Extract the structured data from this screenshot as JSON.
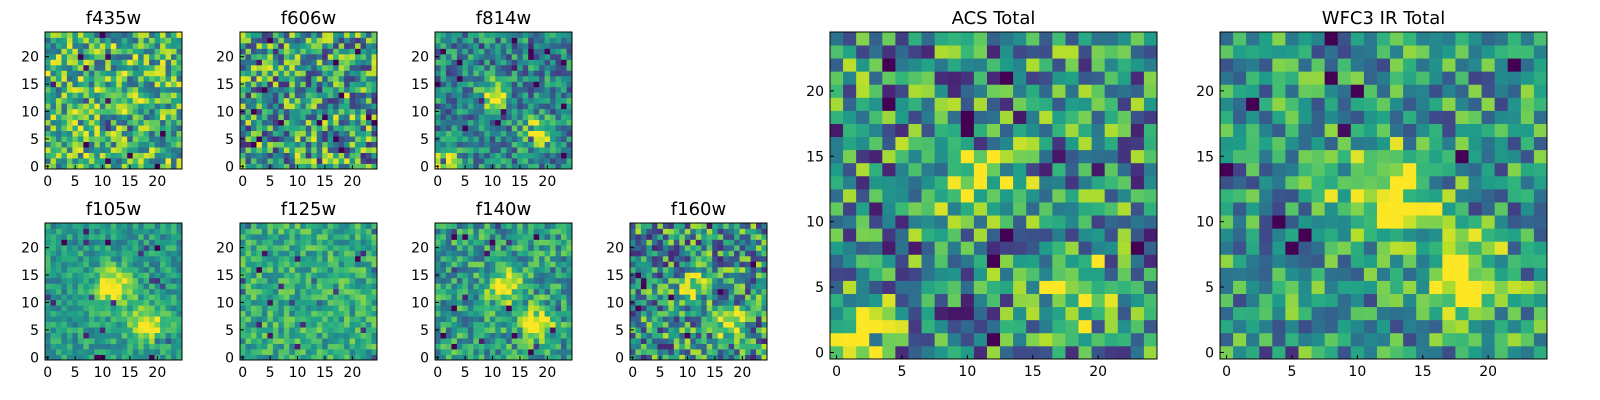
{
  "figure": {
    "panels": [
      {
        "title": "f435w",
        "xticks": [
          "0",
          "5",
          "10",
          "15",
          "20"
        ],
        "yticks": [
          "0",
          "5",
          "10",
          "15",
          "20"
        ]
      },
      {
        "title": "f606w",
        "xticks": [
          "0",
          "5",
          "10",
          "15",
          "20"
        ],
        "yticks": [
          "0",
          "5",
          "10",
          "15",
          "20"
        ]
      },
      {
        "title": "f814w",
        "xticks": [
          "0",
          "5",
          "10",
          "15",
          "20"
        ],
        "yticks": [
          "0",
          "5",
          "10",
          "15",
          "20"
        ]
      },
      {
        "title": "f105w",
        "xticks": [
          "0",
          "5",
          "10",
          "15",
          "20"
        ],
        "yticks": [
          "0",
          "5",
          "10",
          "15",
          "20"
        ]
      },
      {
        "title": "f125w",
        "xticks": [
          "0",
          "5",
          "10",
          "15",
          "20"
        ],
        "yticks": [
          "0",
          "5",
          "10",
          "15",
          "20"
        ]
      },
      {
        "title": "f140w",
        "xticks": [
          "0",
          "5",
          "10",
          "15",
          "20"
        ],
        "yticks": [
          "0",
          "5",
          "10",
          "15",
          "20"
        ]
      },
      {
        "title": "f160w",
        "xticks": [
          "0",
          "5",
          "10",
          "15",
          "20"
        ],
        "yticks": [
          "0",
          "5",
          "10",
          "15",
          "20"
        ]
      },
      {
        "title": "ACS Total",
        "xticks": [
          "0",
          "5",
          "10",
          "15",
          "20"
        ],
        "yticks": [
          "0",
          "5",
          "10",
          "15",
          "20"
        ]
      },
      {
        "title": "WFC3 IR Total",
        "xticks": [
          "0",
          "5",
          "10",
          "15",
          "20"
        ],
        "yticks": [
          "0",
          "5",
          "10",
          "15",
          "20"
        ]
      }
    ]
  },
  "chart_data": [
    {
      "type": "heatmap",
      "title": "f435w",
      "xlim": [
        -0.5,
        24.5
      ],
      "ylim": [
        -0.5,
        24.5
      ],
      "grid_size": 25,
      "colormap": "viridis",
      "grid": false,
      "appearance": "noisy, mostly uniform yellow-green with scattered dark pixels"
    },
    {
      "type": "heatmap",
      "title": "f606w",
      "xlim": [
        -0.5,
        24.5
      ],
      "ylim": [
        -0.5,
        24.5
      ],
      "grid_size": 25,
      "colormap": "viridis",
      "grid": false,
      "appearance": "noisy green with brighter patch along the left edge"
    },
    {
      "type": "heatmap",
      "title": "f814w",
      "xlim": [
        -0.5,
        24.5
      ],
      "ylim": [
        -0.5,
        24.5
      ],
      "grid_size": 25,
      "colormap": "viridis",
      "grid": false,
      "peaks": [
        {
          "x": 10,
          "y": 13
        },
        {
          "x": 18,
          "y": 6
        },
        {
          "x": 1,
          "y": 1
        }
      ]
    },
    {
      "type": "heatmap",
      "title": "f105w",
      "xlim": [
        -0.5,
        24.5
      ],
      "ylim": [
        -0.5,
        24.5
      ],
      "grid_size": 25,
      "colormap": "viridis",
      "grid": false,
      "peaks": [
        {
          "x": 12,
          "y": 13
        },
        {
          "x": 18,
          "y": 6
        }
      ]
    },
    {
      "type": "heatmap",
      "title": "f125w",
      "xlim": [
        -0.5,
        24.5
      ],
      "ylim": [
        -0.5,
        24.5
      ],
      "grid_size": 25,
      "colormap": "viridis",
      "grid": false,
      "appearance": "blotchy yellow-green with several dark pixels"
    },
    {
      "type": "heatmap",
      "title": "f140w",
      "xlim": [
        -0.5,
        24.5
      ],
      "ylim": [
        -0.5,
        24.5
      ],
      "grid_size": 25,
      "colormap": "viridis",
      "grid": false,
      "peaks": [
        {
          "x": 12,
          "y": 13
        },
        {
          "x": 18,
          "y": 6
        }
      ]
    },
    {
      "type": "heatmap",
      "title": "f160w",
      "xlim": [
        -0.5,
        24.5
      ],
      "ylim": [
        -0.5,
        24.5
      ],
      "grid_size": 25,
      "colormap": "viridis",
      "grid": false,
      "peaks": [
        {
          "x": 11,
          "y": 13
        },
        {
          "x": 17,
          "y": 6
        }
      ]
    },
    {
      "type": "heatmap",
      "title": "ACS Total",
      "xlim": [
        -0.5,
        24.5
      ],
      "ylim": [
        -0.5,
        24.5
      ],
      "grid_size": 25,
      "colormap": "viridis",
      "grid": false,
      "peaks": [
        {
          "x": 11,
          "y": 13
        },
        {
          "x": 18,
          "y": 5
        },
        {
          "x": 1,
          "y": 2
        }
      ]
    },
    {
      "type": "heatmap",
      "title": "WFC3 IR Total",
      "xlim": [
        -0.5,
        24.5
      ],
      "ylim": [
        -0.5,
        24.5
      ],
      "grid_size": 25,
      "colormap": "viridis",
      "grid": false,
      "peaks": [
        {
          "x": 12,
          "y": 12
        },
        {
          "x": 18,
          "y": 6
        }
      ]
    }
  ]
}
